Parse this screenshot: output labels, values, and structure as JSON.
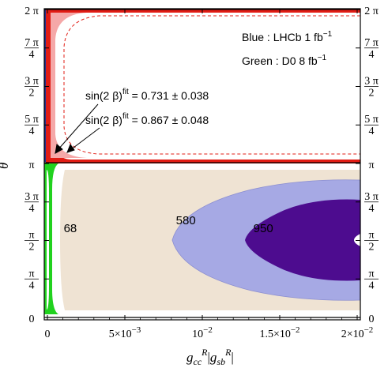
{
  "chart_data": {
    "type": "contour",
    "xlabel": "g_cc^R|g_sb^R|",
    "ylabel": "θ",
    "xlim": [
      0,
      0.02
    ],
    "ylim": [
      0,
      6.283185307
    ],
    "x_ticks": [
      {
        "value": 0,
        "label": "0"
      },
      {
        "value": 0.005,
        "label": "5×10",
        "exp": "−3"
      },
      {
        "value": 0.01,
        "label": "10",
        "exp": "−2"
      },
      {
        "value": 0.015,
        "label": "1.5×10",
        "exp": "−2"
      },
      {
        "value": 0.02,
        "label": "2×10",
        "exp": "−2"
      }
    ],
    "y_ticks": [
      {
        "value": 0,
        "kind": "single",
        "text": "0"
      },
      {
        "value": 0.785398,
        "kind": "frac",
        "num": "π",
        "den": "4",
        "small": true
      },
      {
        "value": 1.570796,
        "kind": "frac",
        "num": "π",
        "den": "2",
        "small": true
      },
      {
        "value": 2.356194,
        "kind": "frac",
        "num": "3 π",
        "den": "4"
      },
      {
        "value": 3.141593,
        "kind": "single",
        "text": "π"
      },
      {
        "value": 3.926991,
        "kind": "frac",
        "num": "5 π",
        "den": "4"
      },
      {
        "value": 4.712389,
        "kind": "frac",
        "num": "3 π",
        "den": "2"
      },
      {
        "value": 5.497787,
        "kind": "frac",
        "num": "7 π",
        "den": "4"
      },
      {
        "value": 6.283185,
        "kind": "single",
        "text": "2 π"
      }
    ],
    "legend_text": [
      {
        "label": "Blue : LHCb 1 fb",
        "sup": "−1"
      },
      {
        "label": "Green : D0 8 fb",
        "sup": "−1"
      }
    ],
    "annotations": [
      {
        "label": "sin(2 β)",
        "sup": "fit",
        "value": " = 0.731 ± 0.038"
      },
      {
        "label": "sin(2 β)",
        "sup": "fit",
        "value": " = 0.867 ± 0.048"
      }
    ],
    "contour_labels": [
      {
        "text": "68",
        "x": 0.00105,
        "y": 1.82
      },
      {
        "text": "580",
        "x": 0.0083,
        "y": 1.98
      },
      {
        "text": "950",
        "x": 0.0133,
        "y": 1.82
      }
    ],
    "regions": [
      {
        "name": "68",
        "color": "#efe3d3",
        "x_boundary_at_center": 0.0012
      },
      {
        "name": "580",
        "color": "#a6a9e4",
        "x_boundary_at_center": 0.0081
      },
      {
        "name": "950",
        "color": "#4d0c8f",
        "x_boundary_at_center": 0.0139
      },
      {
        "name": "LHCb",
        "color": "#1b2f93"
      },
      {
        "name": "D0",
        "color": "#21d21f"
      },
      {
        "name": "sin2beta",
        "color": "#e11c14"
      }
    ]
  }
}
